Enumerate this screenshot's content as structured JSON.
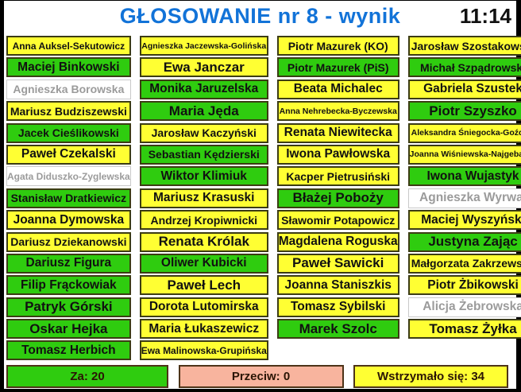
{
  "header": {
    "title": "GŁOSOWANIE nr 8 - wynik",
    "time": "11:14"
  },
  "legend_colors": {
    "za": "#2fcc0f",
    "przeciw": "#f8b49e",
    "wstrzymalo": "#ffff33",
    "nieobecny": "#ffffff"
  },
  "votes": {
    "columns": [
      [
        {
          "name": "Anna Auksel-Sekutowicz",
          "vote": "wstrzymalo"
        },
        {
          "name": "Maciej Binkowski",
          "vote": "za"
        },
        {
          "name": "Agnieszka Borowska",
          "vote": "nieobecny"
        },
        {
          "name": "Mariusz Budziszewski",
          "vote": "wstrzymalo"
        },
        {
          "name": "Jacek Cieślikowski",
          "vote": "za"
        },
        {
          "name": "Paweł Czekalski",
          "vote": "wstrzymalo"
        },
        {
          "name": "Agata Diduszko-Zyglewska",
          "vote": "nieobecny"
        },
        {
          "name": "Stanisław Dratkiewicz",
          "vote": "za"
        },
        {
          "name": "Joanna Dymowska",
          "vote": "wstrzymalo"
        },
        {
          "name": "Dariusz Dziekanowski",
          "vote": "wstrzymalo"
        },
        {
          "name": "Dariusz Figura",
          "vote": "za"
        },
        {
          "name": "Filip Frąckowiak",
          "vote": "za"
        },
        {
          "name": "Patryk Górski",
          "vote": "za"
        },
        {
          "name": "Oskar Hejka",
          "vote": "za"
        },
        {
          "name": "Tomasz Herbich",
          "vote": "za"
        }
      ],
      [
        {
          "name": "Agnieszka Jaczewska-Golińska",
          "vote": "wstrzymalo"
        },
        {
          "name": "Ewa Janczar",
          "vote": "wstrzymalo"
        },
        {
          "name": "Monika Jaruzelska",
          "vote": "za"
        },
        {
          "name": "Maria Jęda",
          "vote": "za"
        },
        {
          "name": "Jarosław Kaczyński",
          "vote": "wstrzymalo"
        },
        {
          "name": "Sebastian Kędzierski",
          "vote": "za"
        },
        {
          "name": "Wiktor Klimiuk",
          "vote": "za"
        },
        {
          "name": "Mariusz Krasuski",
          "vote": "wstrzymalo"
        },
        {
          "name": "Andrzej Kropiwnicki",
          "vote": "wstrzymalo"
        },
        {
          "name": "Renata Królak",
          "vote": "wstrzymalo"
        },
        {
          "name": "Oliwer Kubicki",
          "vote": "za"
        },
        {
          "name": "Paweł Lech",
          "vote": "wstrzymalo"
        },
        {
          "name": "Dorota Lutomirska",
          "vote": "wstrzymalo"
        },
        {
          "name": "Maria Łukaszewicz",
          "vote": "wstrzymalo"
        },
        {
          "name": "Ewa Malinowska-Grupińska",
          "vote": "wstrzymalo"
        }
      ],
      [
        {
          "name": "Piotr Mazurek (KO)",
          "vote": "wstrzymalo"
        },
        {
          "name": "Piotr Mazurek (PiS)",
          "vote": "za"
        },
        {
          "name": "Beata Michalec",
          "vote": "wstrzymalo"
        },
        {
          "name": "Anna Nehrebecka-Byczewska",
          "vote": "wstrzymalo"
        },
        {
          "name": "Renata Niewitecka",
          "vote": "wstrzymalo"
        },
        {
          "name": "Iwona Pawłowska",
          "vote": "wstrzymalo"
        },
        {
          "name": "Kacper Pietrusiński",
          "vote": "wstrzymalo"
        },
        {
          "name": "Błażej Poboży",
          "vote": "za"
        },
        {
          "name": "Sławomir Potapowicz",
          "vote": "wstrzymalo"
        },
        {
          "name": "Magdalena Roguska",
          "vote": "wstrzymalo"
        },
        {
          "name": "Paweł Sawicki",
          "vote": "wstrzymalo"
        },
        {
          "name": "Joanna Staniszkis",
          "vote": "wstrzymalo"
        },
        {
          "name": "Tomasz Sybilski",
          "vote": "wstrzymalo"
        },
        {
          "name": "Marek Szolc",
          "vote": "za"
        }
      ],
      [
        {
          "name": "Jarosław Szostakowski",
          "vote": "wstrzymalo"
        },
        {
          "name": "Michał Szpądrowski",
          "vote": "za"
        },
        {
          "name": "Gabriela Szustek",
          "vote": "wstrzymalo"
        },
        {
          "name": "Piotr Szyszko",
          "vote": "za"
        },
        {
          "name": "Aleksandra Śniegocka-Goździk",
          "vote": "wstrzymalo"
        },
        {
          "name": "Joanna Wiśniewska-Najgebauer",
          "vote": "wstrzymalo"
        },
        {
          "name": "Iwona Wujastyk",
          "vote": "za"
        },
        {
          "name": "Agnieszka Wyrwał",
          "vote": "nieobecny"
        },
        {
          "name": "Maciej Wyszyński",
          "vote": "wstrzymalo"
        },
        {
          "name": "Justyna Zając",
          "vote": "za"
        },
        {
          "name": "Małgorzata Zakrzewska",
          "vote": "wstrzymalo"
        },
        {
          "name": "Piotr Żbikowski",
          "vote": "wstrzymalo"
        },
        {
          "name": "Alicja Żebrowska",
          "vote": "nieobecny"
        },
        {
          "name": "Tomasz Żyłka",
          "vote": "wstrzymalo"
        }
      ]
    ]
  },
  "summary": [
    {
      "id": "za",
      "label": "Za: 20",
      "color_key": "za"
    },
    {
      "id": "przeciw",
      "label": "Przeciw: 0",
      "color_key": "przeciw"
    },
    {
      "id": "wstrzymalo",
      "label": "Wstrzymało się: 34",
      "color_key": "wstrzymalo"
    }
  ]
}
